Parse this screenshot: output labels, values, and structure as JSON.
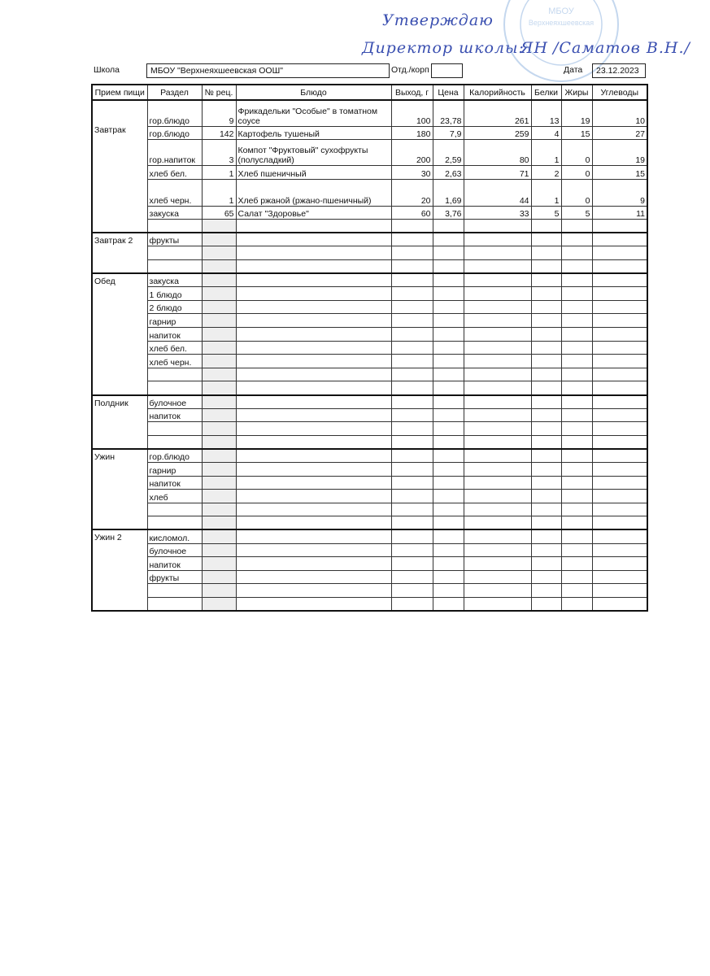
{
  "approval": {
    "line1": "Утверждаю",
    "line2": "Директор школы:",
    "signature": "ЯН",
    "name": "/Саматов В.Н./",
    "stamp_text": "МБОУ \"Верхнеяхшеевская ООШ\"",
    "ink_color": "#3a4fb0"
  },
  "header": {
    "school_label": "Школа",
    "school_value": "МБОУ \"Верхнеяхшеевская ООШ\"",
    "dept_label": "Отд./корп",
    "dept_value": "",
    "date_label": "Дата",
    "date_value": "23.12.2023"
  },
  "table": {
    "columns": [
      "Прием пищи",
      "Раздел",
      "№ рец.",
      "Блюдо",
      "Выход, г",
      "Цена",
      "Калорийность",
      "Белки",
      "Жиры",
      "Углеводы"
    ],
    "groups": [
      {
        "meal": "Завтрак",
        "rows": [
          {
            "section": "гор.блюдо",
            "recipe": "9",
            "dish": "Фрикадельки \"Особые\" в томатном соусе",
            "output": "100",
            "price": "23,78",
            "kcal": "261",
            "protein": "13",
            "fat": "19",
            "carbs": "10",
            "tall": 2
          },
          {
            "section": "гор.блюдо",
            "recipe": "142",
            "dish": "Картофель тушеный",
            "output": "180",
            "price": "7,9",
            "kcal": "259",
            "protein": "4",
            "fat": "15",
            "carbs": "27"
          },
          {
            "section": "гор.напиток",
            "recipe": "3",
            "dish": "Компот \"Фруктовый\" сухофрукты (полусладкий)",
            "output": "200",
            "price": "2,59",
            "kcal": "80",
            "protein": "1",
            "fat": "0",
            "carbs": "19",
            "tall": 2
          },
          {
            "section": "хлеб бел.",
            "recipe": "1",
            "dish": "Хлеб пшеничный",
            "output": "30",
            "price": "2,63",
            "kcal": "71",
            "protein": "2",
            "fat": "0",
            "carbs": "15"
          },
          {
            "section": "хлеб черн.",
            "recipe": "1",
            "dish": "Хлеб ржаной (ржано-пшеничный)",
            "output": "20",
            "price": "1,69",
            "kcal": "44",
            "protein": "1",
            "fat": "0",
            "carbs": "9",
            "tall": 2
          },
          {
            "section": "закуска",
            "recipe": "65",
            "dish": "Салат \"Здоровье\"",
            "output": "60",
            "price": "3,76",
            "kcal": "33",
            "protein": "5",
            "fat": "5",
            "carbs": "11"
          },
          {
            "section": ""
          }
        ]
      },
      {
        "meal": "Завтрак 2",
        "rows": [
          {
            "section": "фрукты"
          },
          {
            "section": ""
          },
          {
            "section": ""
          }
        ]
      },
      {
        "meal": "Обед",
        "rows": [
          {
            "section": "закуска"
          },
          {
            "section": "1 блюдо"
          },
          {
            "section": "2 блюдо"
          },
          {
            "section": "гарнир"
          },
          {
            "section": "напиток"
          },
          {
            "section": "хлеб бел."
          },
          {
            "section": "хлеб черн."
          },
          {
            "section": ""
          },
          {
            "section": ""
          }
        ]
      },
      {
        "meal": "Полдник",
        "rows": [
          {
            "section": "булочное"
          },
          {
            "section": "напиток"
          },
          {
            "section": ""
          },
          {
            "section": ""
          }
        ]
      },
      {
        "meal": "Ужин",
        "rows": [
          {
            "section": "гор.блюдо"
          },
          {
            "section": "гарнир"
          },
          {
            "section": "напиток"
          },
          {
            "section": "хлеб"
          },
          {
            "section": ""
          },
          {
            "section": ""
          }
        ]
      },
      {
        "meal": "Ужин 2",
        "rows": [
          {
            "section": "кисломол."
          },
          {
            "section": "булочное"
          },
          {
            "section": "напиток"
          },
          {
            "section": "фрукты"
          },
          {
            "section": ""
          },
          {
            "section": ""
          }
        ]
      }
    ]
  }
}
